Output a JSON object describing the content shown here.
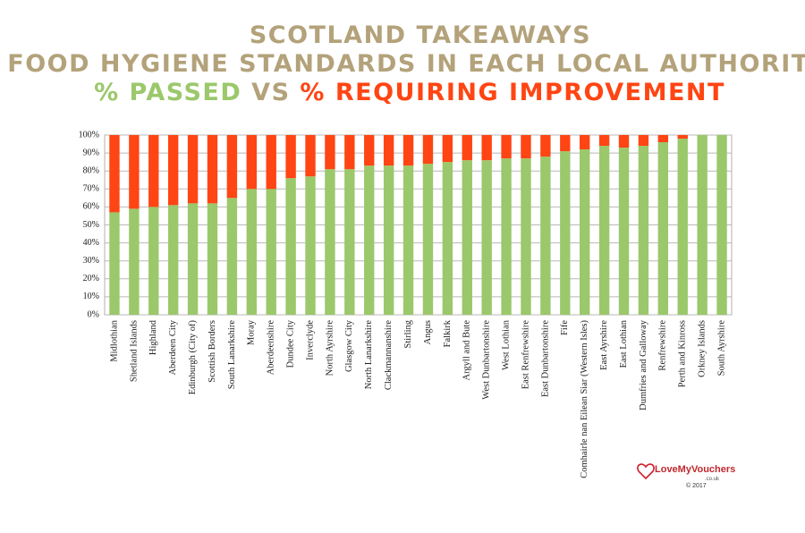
{
  "chart_data": {
    "type": "stacked_bar",
    "title": "SCOTLAND TAKEAWAYS",
    "title_line_2": "FOOD HYGIENE STANDARDS IN EACH LOCAL AUTHORITY",
    "subtitle_joiner": "VS",
    "categories": [
      "Midlothian",
      "Shetland Islands",
      "Highland",
      "Aberdeen City",
      "Edinburgh (City of)",
      "Scottish Borders",
      "South Lanarkshire",
      "Moray",
      "Aberdeenshire",
      "Dundee City",
      "Inverclyde",
      "North Ayrshire",
      "Glasgow City",
      "North Lanarkshire",
      "Clackmannanshire",
      "Stirling",
      "Angus",
      "Falkirk",
      "Argyll and Bute",
      "West Dunbartonshire",
      "West Lothian",
      "East Renfrewshire",
      "East Dunbartonshire",
      "Fife",
      "Comhairle nan Eilean Siar (Western Isles)",
      "East Ayrshire",
      "East Lothian",
      "Dumfries and Galloway",
      "Renfrewshire",
      "Perth and Kinross",
      "Orkney Islands",
      "South Ayrshire"
    ],
    "series": [
      {
        "name": "% PASSED",
        "color": "#9bc86b",
        "values": [
          57,
          59,
          60,
          61,
          62,
          62,
          65,
          70,
          70,
          76,
          77,
          81,
          81,
          83,
          83,
          83,
          84,
          85,
          86,
          86,
          87,
          87,
          88,
          91,
          92,
          94,
          93,
          94,
          96,
          98,
          100,
          100
        ]
      },
      {
        "name": "% REQUIRING IMPROVEMENT",
        "color": "#ff4513",
        "values": [
          43,
          41,
          40,
          39,
          38,
          38,
          35,
          30,
          30,
          24,
          23,
          19,
          19,
          17,
          17,
          17,
          16,
          15,
          14,
          14,
          13,
          13,
          12,
          9,
          8,
          6,
          7,
          6,
          4,
          2,
          0,
          0
        ]
      }
    ],
    "ylim": [
      0,
      100
    ],
    "yticks": [
      {
        "value": 0,
        "label": "0%"
      },
      {
        "value": 10,
        "label": "10%"
      },
      {
        "value": 20,
        "label": "20%"
      },
      {
        "value": 30,
        "label": "30%"
      },
      {
        "value": 40,
        "label": "40%"
      },
      {
        "value": 50,
        "label": "50%"
      },
      {
        "value": 60,
        "label": "60%"
      },
      {
        "value": 70,
        "label": "70%"
      },
      {
        "value": 80,
        "label": "80%"
      },
      {
        "value": 90,
        "label": "90%"
      },
      {
        "value": 100,
        "label": "100%"
      }
    ],
    "grid": true
  },
  "logo": {
    "name": "LoveMyVouchers",
    "domain": ".co.uk",
    "copyright": "© 2017"
  }
}
